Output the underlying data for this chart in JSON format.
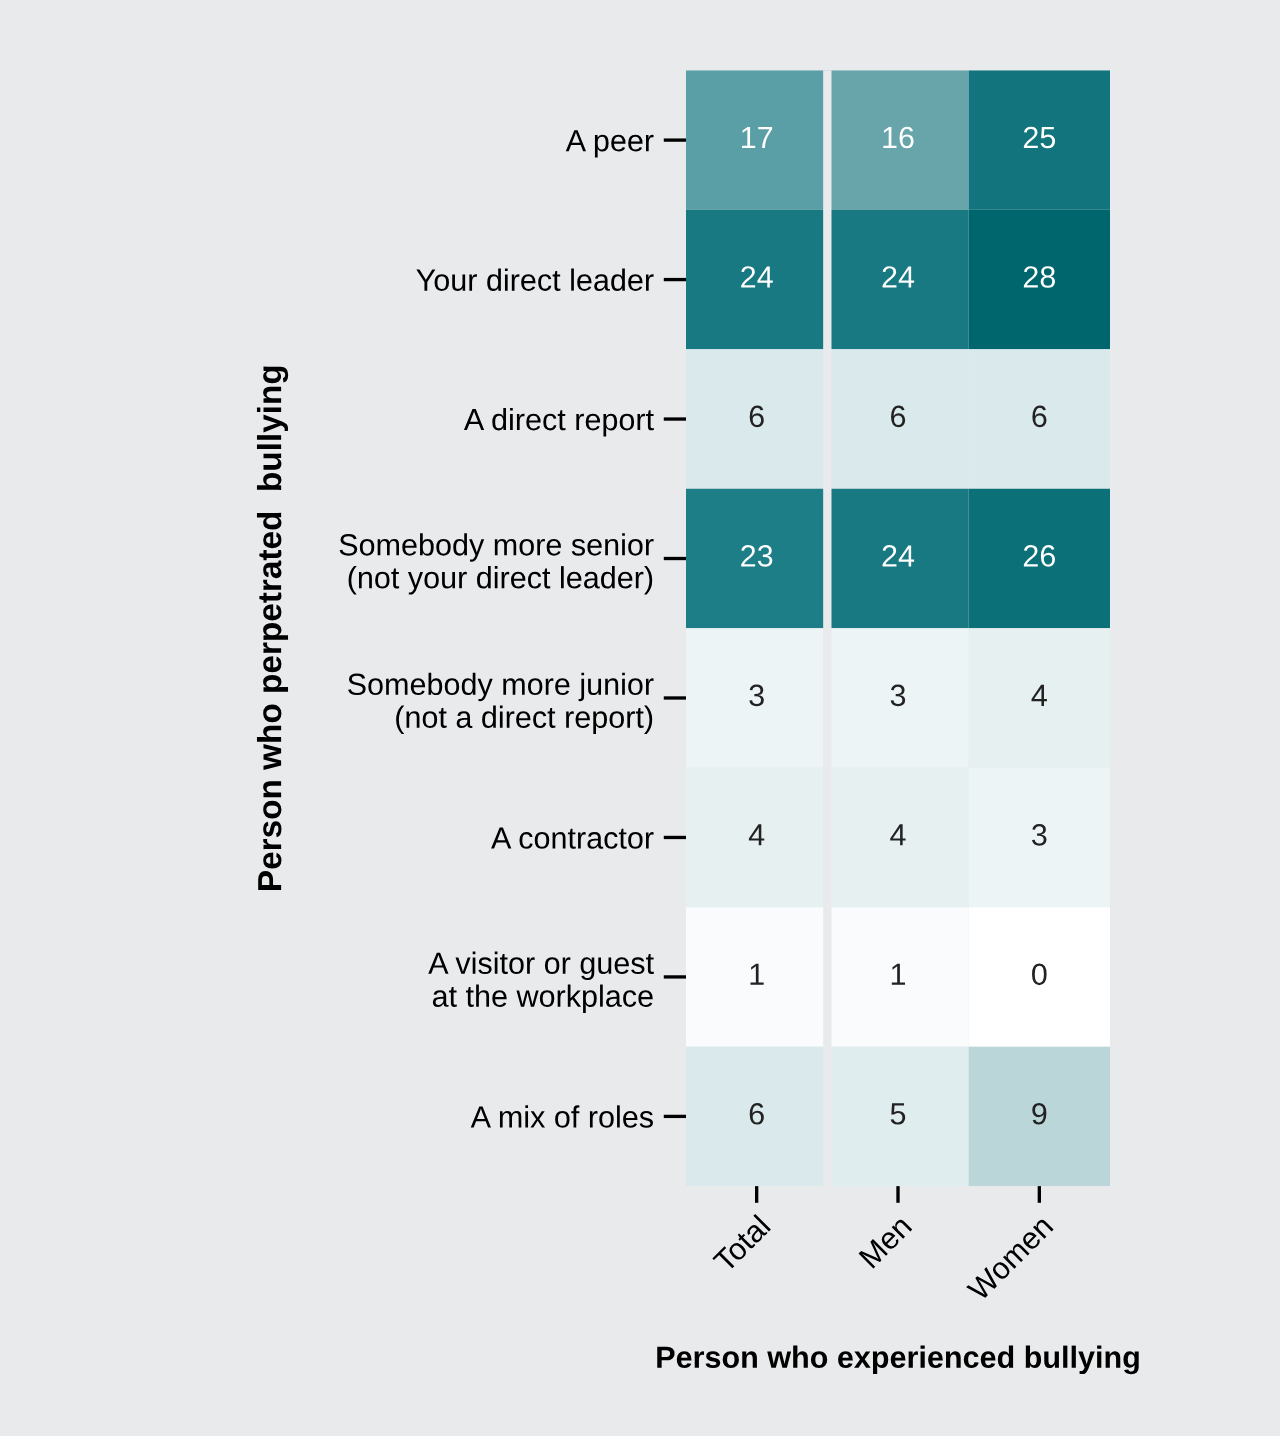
{
  "chart_data": {
    "type": "heatmap",
    "data_labels": true,
    "ylabel": "Person who perpetrated  bullying",
    "xlabel": "Person who experienced bullying",
    "categories": [
      "Total",
      "Men",
      "Women"
    ],
    "y_categories": [
      "A peer",
      "Your direct leader",
      "A direct report",
      "Somebody more senior\n(not your direct leader)",
      "Somebody more junior\n(not a direct report)",
      "A contractor",
      "A visitor or guest\nat the workplace",
      "A mix of roles"
    ],
    "cells": [
      [
        17,
        16,
        25
      ],
      [
        24,
        24,
        28
      ],
      [
        6,
        6,
        6
      ],
      [
        23,
        24,
        26
      ],
      [
        3,
        3,
        4
      ],
      [
        4,
        4,
        3
      ],
      [
        1,
        1,
        0
      ],
      [
        6,
        5,
        9
      ]
    ]
  }
}
